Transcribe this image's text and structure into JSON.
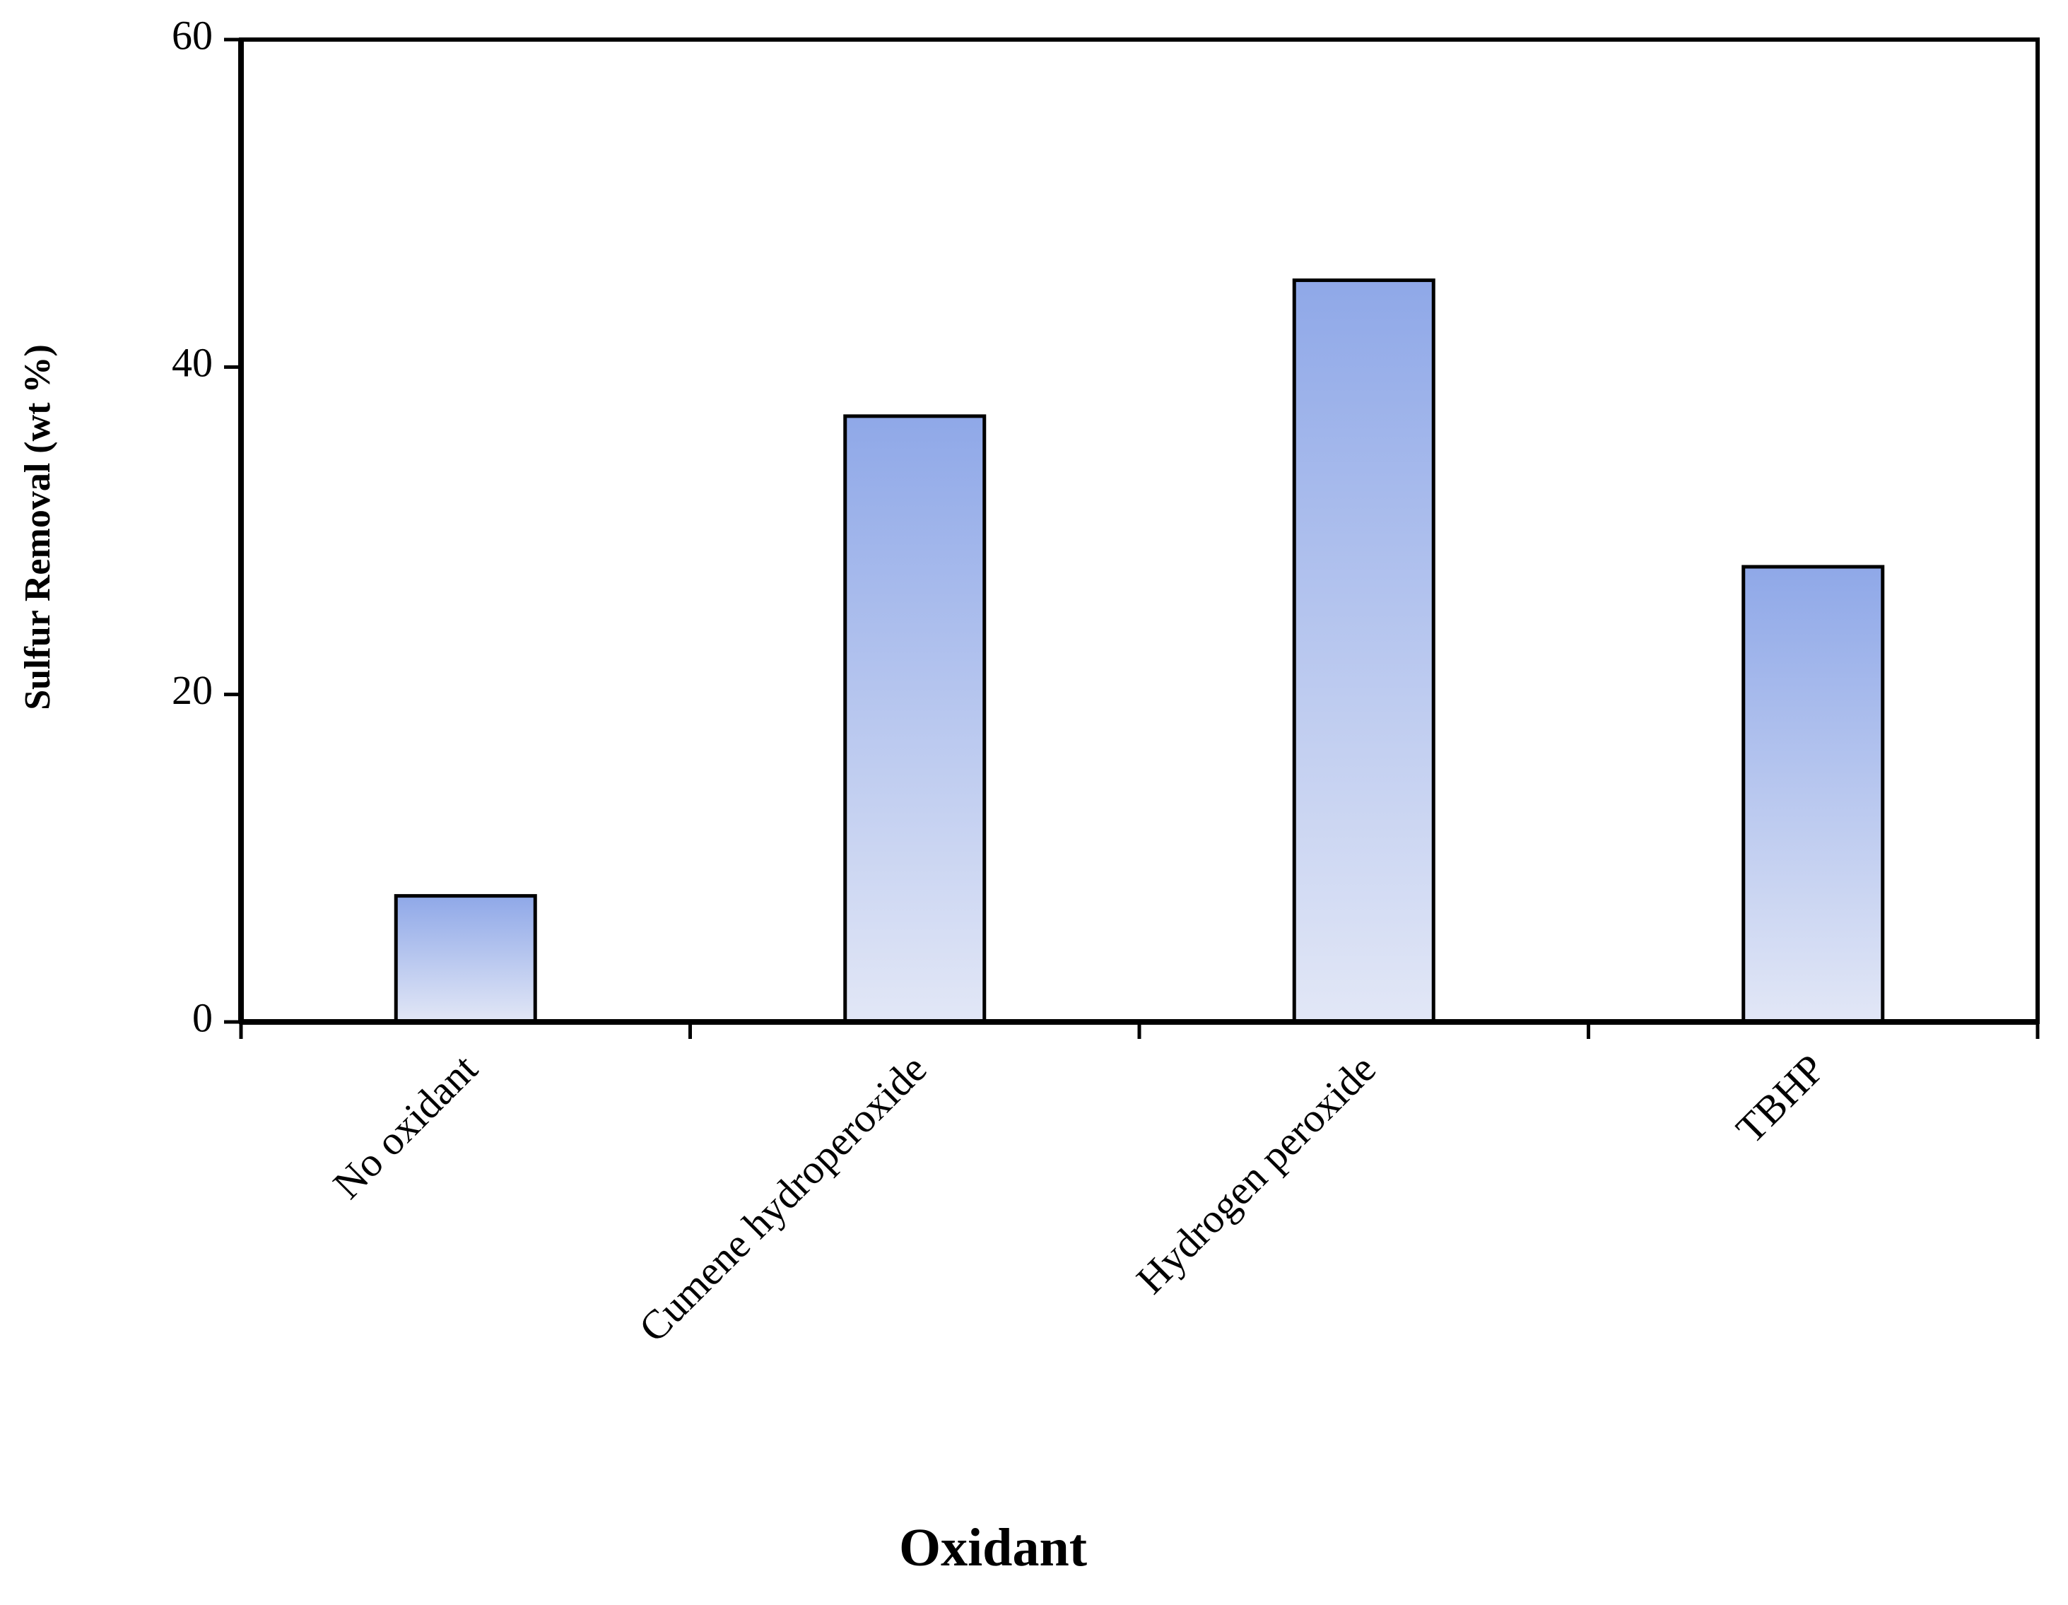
{
  "chart_data": {
    "type": "bar",
    "x_label": "Oxidant",
    "y_label": "Sulfur Removal (wt %)",
    "categories": [
      "No oxidant",
      "Cumene hydroperoxide",
      "Hydrogen peroxide",
      "TBHP"
    ],
    "values": [
      7.7,
      37,
      45.3,
      27.8
    ],
    "color": "#8fa8e8",
    "ylim": [
      0,
      60
    ],
    "yticks": [
      0,
      20,
      40,
      60
    ],
    "grid": false
  }
}
